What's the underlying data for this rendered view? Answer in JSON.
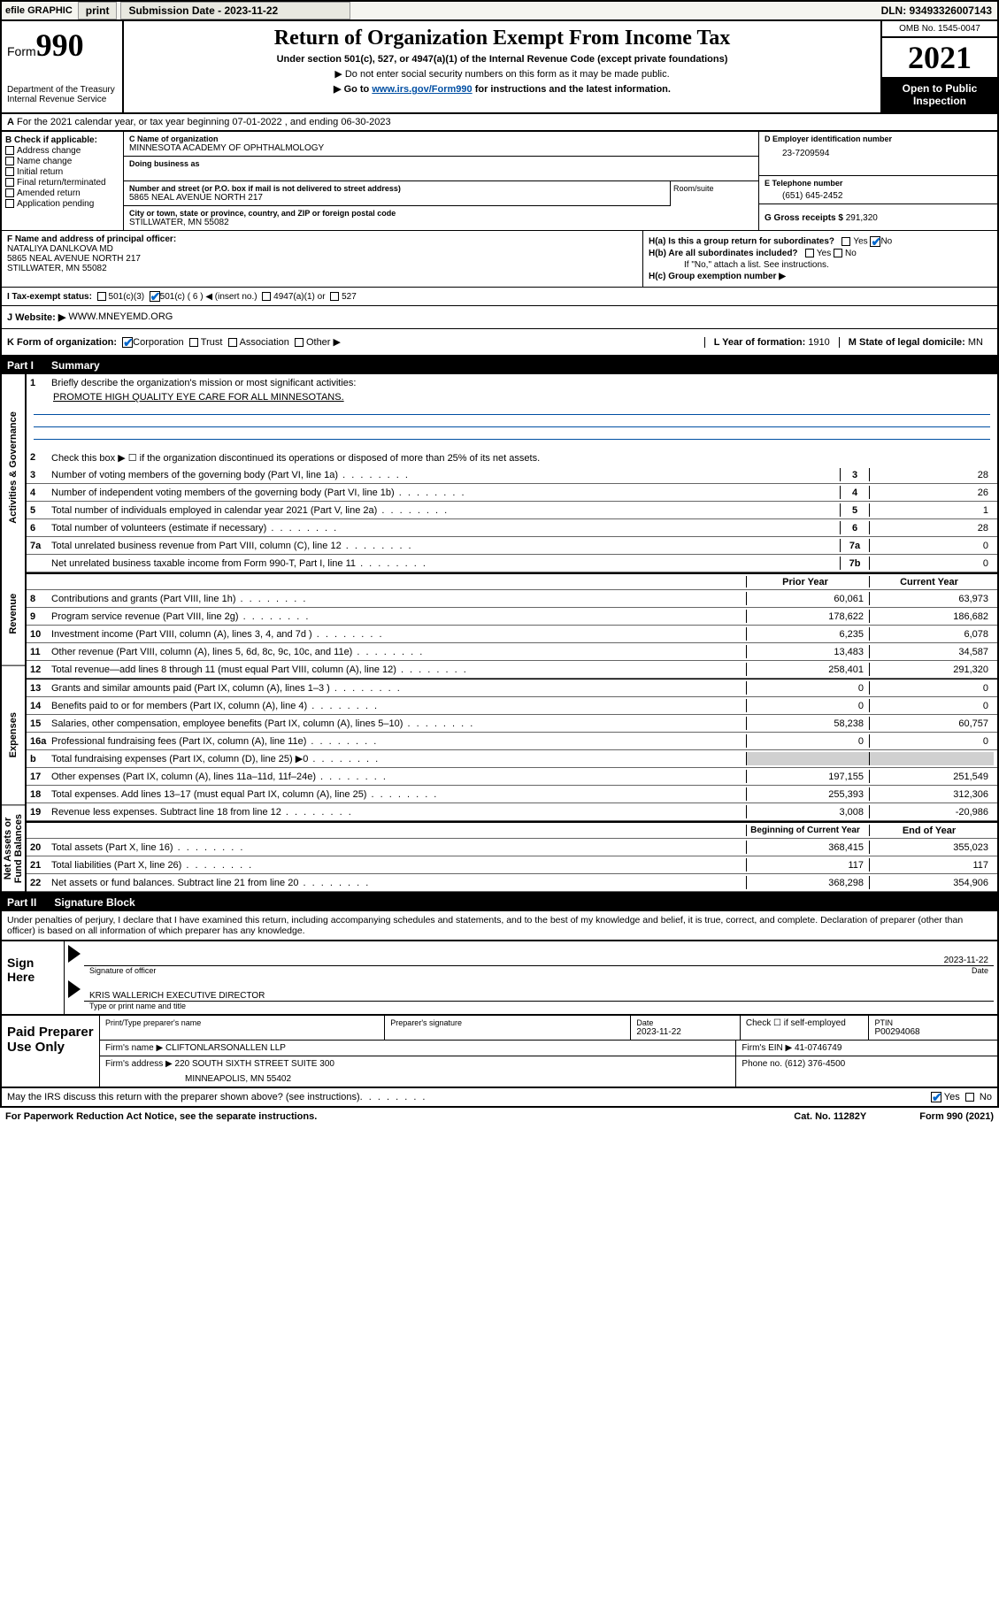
{
  "topbar": {
    "efile": "efile GRAPHIC",
    "print": "print",
    "sub_label": "Submission Date - 2023-11-22",
    "dln": "DLN: 93493326007143"
  },
  "header": {
    "form_word": "Form",
    "form_num": "990",
    "dept": "Department of the Treasury",
    "irs": "Internal Revenue Service",
    "title": "Return of Organization Exempt From Income Tax",
    "sub1": "Under section 501(c), 527, or 4947(a)(1) of the Internal Revenue Code (except private foundations)",
    "sub2": "▶ Do not enter social security numbers on this form as it may be made public.",
    "sub3_pre": "▶ Go to ",
    "sub3_link": "www.irs.gov/Form990",
    "sub3_post": " for instructions and the latest information.",
    "omb": "OMB No. 1545-0047",
    "year": "2021",
    "open": "Open to Public Inspection"
  },
  "A": {
    "text": "For the 2021 calendar year, or tax year beginning 07-01-2022    , and ending 06-30-2023"
  },
  "B": {
    "label": "B Check if applicable:",
    "opts": [
      "Address change",
      "Name change",
      "Initial return",
      "Final return/terminated",
      "Amended return",
      "Application pending"
    ]
  },
  "C": {
    "name_lbl": "C Name of organization",
    "name": "MINNESOTA ACADEMY OF OPHTHALMOLOGY",
    "dba_lbl": "Doing business as",
    "dba": "",
    "street_lbl": "Number and street (or P.O. box if mail is not delivered to street address)",
    "room_lbl": "Room/suite",
    "street": "5865 NEAL AVENUE NORTH 217",
    "city_lbl": "City or town, state or province, country, and ZIP or foreign postal code",
    "city": "STILLWATER, MN  55082"
  },
  "D": {
    "lbl": "D Employer identification number",
    "val": "23-7209594"
  },
  "E": {
    "lbl": "E Telephone number",
    "val": "(651) 645-2452"
  },
  "G": {
    "lbl": "G Gross receipts $",
    "val": "291,320"
  },
  "F": {
    "lbl": "F  Name and address of principal officer:",
    "name": "NATALIYA DANLKOVA MD",
    "street": "5865 NEAL AVENUE NORTH 217",
    "city": "STILLWATER, MN  55082"
  },
  "H": {
    "a": "H(a)  Is this a group return for subordinates?",
    "b": "H(b)  Are all subordinates included?",
    "note": "If \"No,\" attach a list. See instructions.",
    "c": "H(c)  Group exemption number ▶"
  },
  "I": {
    "lbl": "I    Tax-exempt status:",
    "opts": [
      "501(c)(3)",
      "501(c) ( 6 ) ◀ (insert no.)",
      "4947(a)(1) or",
      "527"
    ]
  },
  "J": {
    "lbl": "J    Website: ▶",
    "val": "WWW.MNEYEMD.ORG"
  },
  "K": {
    "lbl": "K Form of organization:",
    "opts": [
      "Corporation",
      "Trust",
      "Association",
      "Other ▶"
    ]
  },
  "L": {
    "lbl": "L Year of formation:",
    "val": "1910"
  },
  "M": {
    "lbl": "M State of legal domicile:",
    "val": "MN"
  },
  "partI": {
    "num": "Part I",
    "title": "Summary"
  },
  "summary": {
    "side": [
      "Activities & Governance",
      "Revenue",
      "Expenses",
      "Net Assets or Fund Balances"
    ],
    "q1": "Briefly describe the organization's mission or most significant activities:",
    "mission": "PROMOTE HIGH QUALITY EYE CARE FOR ALL MINNESOTANS.",
    "q2": "Check this box ▶ ☐  if the organization discontinued its operations or disposed of more than 25% of its net assets.",
    "lines_gov": [
      {
        "n": "3",
        "t": "Number of voting members of the governing body (Part VI, line 1a)",
        "c": "3",
        "v": "28"
      },
      {
        "n": "4",
        "t": "Number of independent voting members of the governing body (Part VI, line 1b)",
        "c": "4",
        "v": "26"
      },
      {
        "n": "5",
        "t": "Total number of individuals employed in calendar year 2021 (Part V, line 2a)",
        "c": "5",
        "v": "1"
      },
      {
        "n": "6",
        "t": "Total number of volunteers (estimate if necessary)",
        "c": "6",
        "v": "28"
      },
      {
        "n": "7a",
        "t": "Total unrelated business revenue from Part VIII, column (C), line 12",
        "c": "7a",
        "v": "0"
      },
      {
        "n": "",
        "t": "Net unrelated business taxable income from Form 990-T, Part I, line 11",
        "c": "7b",
        "v": "0"
      }
    ],
    "hdr_prior": "Prior Year",
    "hdr_curr": "Current Year",
    "lines_rev": [
      {
        "n": "8",
        "t": "Contributions and grants (Part VIII, line 1h)",
        "p": "60,061",
        "c": "63,973"
      },
      {
        "n": "9",
        "t": "Program service revenue (Part VIII, line 2g)",
        "p": "178,622",
        "c": "186,682"
      },
      {
        "n": "10",
        "t": "Investment income (Part VIII, column (A), lines 3, 4, and 7d )",
        "p": "6,235",
        "c": "6,078"
      },
      {
        "n": "11",
        "t": "Other revenue (Part VIII, column (A), lines 5, 6d, 8c, 9c, 10c, and 11e)",
        "p": "13,483",
        "c": "34,587"
      },
      {
        "n": "12",
        "t": "Total revenue—add lines 8 through 11 (must equal Part VIII, column (A), line 12)",
        "p": "258,401",
        "c": "291,320"
      }
    ],
    "lines_exp": [
      {
        "n": "13",
        "t": "Grants and similar amounts paid (Part IX, column (A), lines 1–3 )",
        "p": "0",
        "c": "0"
      },
      {
        "n": "14",
        "t": "Benefits paid to or for members (Part IX, column (A), line 4)",
        "p": "0",
        "c": "0"
      },
      {
        "n": "15",
        "t": "Salaries, other compensation, employee benefits (Part IX, column (A), lines 5–10)",
        "p": "58,238",
        "c": "60,757"
      },
      {
        "n": "16a",
        "t": "Professional fundraising fees (Part IX, column (A), line 11e)",
        "p": "0",
        "c": "0"
      },
      {
        "n": "b",
        "t": "Total fundraising expenses (Part IX, column (D), line 25) ▶0",
        "p": "shade",
        "c": "shade"
      },
      {
        "n": "17",
        "t": "Other expenses (Part IX, column (A), lines 11a–11d, 11f–24e)",
        "p": "197,155",
        "c": "251,549"
      },
      {
        "n": "18",
        "t": "Total expenses. Add lines 13–17 (must equal Part IX, column (A), line 25)",
        "p": "255,393",
        "c": "312,306"
      },
      {
        "n": "19",
        "t": "Revenue less expenses. Subtract line 18 from line 12",
        "p": "3,008",
        "c": "-20,986"
      }
    ],
    "hdr_beg": "Beginning of Current Year",
    "hdr_end": "End of Year",
    "lines_net": [
      {
        "n": "20",
        "t": "Total assets (Part X, line 16)",
        "p": "368,415",
        "c": "355,023"
      },
      {
        "n": "21",
        "t": "Total liabilities (Part X, line 26)",
        "p": "117",
        "c": "117"
      },
      {
        "n": "22",
        "t": "Net assets or fund balances. Subtract line 21 from line 20",
        "p": "368,298",
        "c": "354,906"
      }
    ]
  },
  "partII": {
    "num": "Part II",
    "title": "Signature Block"
  },
  "sig": {
    "intro": "Under penalties of perjury, I declare that I have examined this return, including accompanying schedules and statements, and to the best of my knowledge and belief, it is true, correct, and complete. Declaration of preparer (other than officer) is based on all information of which preparer has any knowledge.",
    "sign_here": "Sign Here",
    "sig_officer": "Signature of officer",
    "date": "2023-11-22",
    "date_lbl": "Date",
    "name": "KRIS WALLERICH  EXECUTIVE DIRECTOR",
    "name_lbl": "Type or print name and title"
  },
  "prep": {
    "label": "Paid Preparer Use Only",
    "col1": "Print/Type preparer's name",
    "col2": "Preparer's signature",
    "col3_lbl": "Date",
    "col3": "2023-11-22",
    "col4": "Check ☐ if self-employed",
    "col5_lbl": "PTIN",
    "col5": "P00294068",
    "firm_name_lbl": "Firm's name    ▶",
    "firm_name": "CLIFTONLARSONALLEN LLP",
    "firm_ein_lbl": "Firm's EIN ▶",
    "firm_ein": "41-0746749",
    "firm_addr_lbl": "Firm's address ▶",
    "firm_addr1": "220 SOUTH SIXTH STREET SUITE 300",
    "firm_addr2": "MINNEAPOLIS, MN  55402",
    "phone_lbl": "Phone no.",
    "phone": "(612) 376-4500"
  },
  "footer": {
    "q": "May the IRS discuss this return with the preparer shown above? (see instructions)",
    "paperwork": "For Paperwork Reduction Act Notice, see the separate instructions.",
    "cat": "Cat. No. 11282Y",
    "formref": "Form 990 (2021)"
  }
}
